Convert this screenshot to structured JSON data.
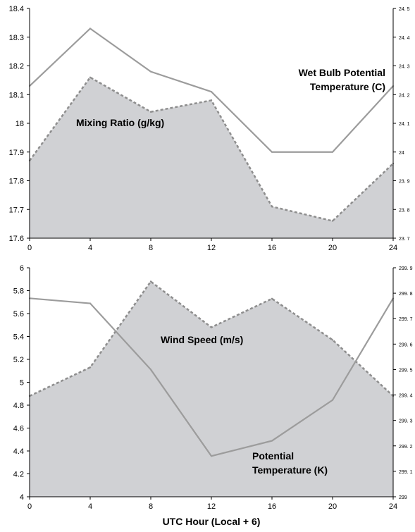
{
  "chart_data": [
    {
      "type": "area",
      "x": [
        0,
        4,
        8,
        12,
        16,
        20,
        24
      ],
      "xlim": [
        0,
        24
      ],
      "xticks": [
        "0",
        "4",
        "8",
        "12",
        "16",
        "20",
        "24"
      ],
      "ylim_left": [
        17.6,
        18.4
      ],
      "yticks_left": [
        "17.6",
        "17.7",
        "17.8",
        "17.9",
        "18",
        "18.1",
        "18.2",
        "18.3",
        "18.4"
      ],
      "ylim_right": [
        23.7,
        24.5
      ],
      "yticks_right": [
        "23. 7",
        "23. 8",
        "23. 9",
        "24",
        "24. 1",
        "24. 2",
        "24. 3",
        "24. 4",
        "24. 5"
      ],
      "grid": false,
      "series": [
        {
          "name": "Mixing Ratio (g/kg)",
          "axis": "left",
          "style": "area",
          "values": [
            17.87,
            18.16,
            18.04,
            18.08,
            17.71,
            17.66,
            17.86
          ]
        },
        {
          "name": "Wet Bulb Potential Temperature (C)",
          "axis": "right",
          "style": "line",
          "values": [
            24.23,
            24.43,
            24.28,
            24.21,
            24.0,
            24.0,
            24.23
          ]
        }
      ],
      "annotations": [
        {
          "lines": [
            "Mixing Ratio (g/kg)"
          ]
        },
        {
          "lines": [
            "Wet Bulb Potential",
            "Temperature (C)"
          ]
        }
      ]
    },
    {
      "type": "area",
      "x": [
        0,
        4,
        8,
        12,
        16,
        20,
        24
      ],
      "xlim": [
        0,
        24
      ],
      "xticks": [
        "0",
        "4",
        "8",
        "12",
        "16",
        "20",
        "24"
      ],
      "ylim_left": [
        4,
        6
      ],
      "yticks_left": [
        "4",
        "4.2",
        "4.4",
        "4.6",
        "4.8",
        "5",
        "5.2",
        "5.4",
        "5.6",
        "5.8",
        "6"
      ],
      "ylim_right": [
        299,
        299.9
      ],
      "yticks_right": [
        "299",
        "299. 1",
        "299. 2",
        "299. 3",
        "299. 4",
        "299. 5",
        "299. 6",
        "299. 7",
        "299. 8",
        "299. 9"
      ],
      "xlabel": "UTC Hour (Local + 6)",
      "grid": false,
      "series": [
        {
          "name": "Wind Speed (m/s)",
          "axis": "left",
          "style": "area",
          "values": [
            4.88,
            5.13,
            5.88,
            5.48,
            5.73,
            5.37,
            4.88
          ]
        },
        {
          "name": "Potential Temperature (K)",
          "axis": "right",
          "style": "line",
          "values": [
            299.78,
            299.76,
            299.5,
            299.16,
            299.22,
            299.38,
            299.78
          ]
        }
      ],
      "annotations": [
        {
          "lines": [
            "Wind Speed (m/s)"
          ]
        },
        {
          "lines": [
            "Potential",
            "Temperature (K)"
          ]
        }
      ]
    }
  ],
  "colors": {
    "area_fill": "#d0d1d4",
    "area_edge": "#8e8e8e",
    "line": "#9c9c9c",
    "axis": "#000000"
  }
}
